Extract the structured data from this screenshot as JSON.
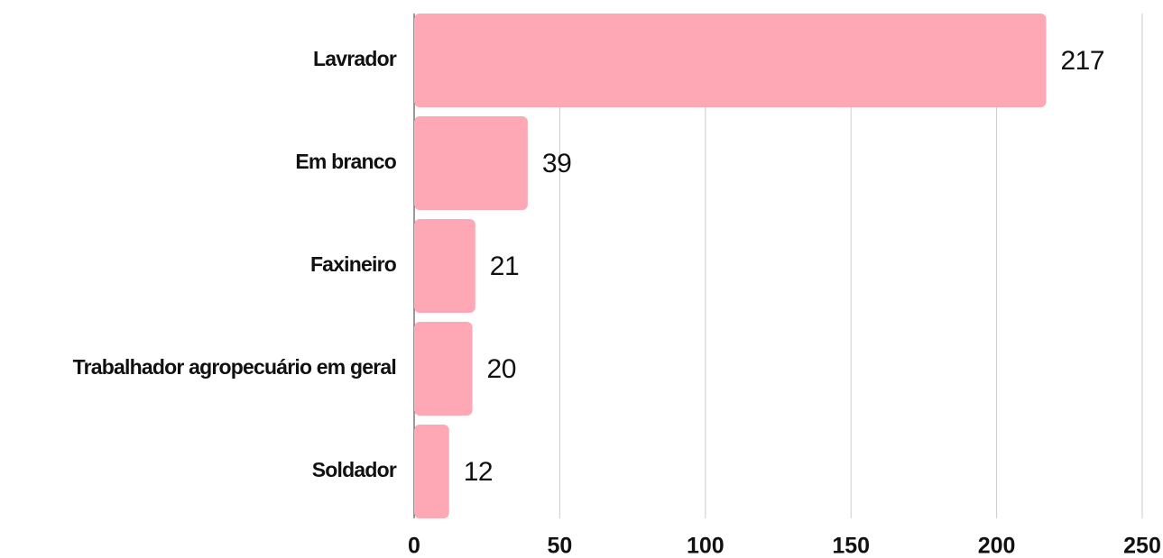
{
  "chart_data": {
    "type": "hbar",
    "categories": [
      "Lavrador",
      "Em branco",
      "Faxineiro",
      "Trabalhador agropecuário em geral",
      "Soldador"
    ],
    "values": [
      217,
      39,
      21,
      20,
      12
    ],
    "color": "#ffa8b5",
    "xlim": [
      0,
      250
    ],
    "xticks": [
      0,
      50,
      100,
      150,
      200,
      250
    ],
    "grid": true
  }
}
